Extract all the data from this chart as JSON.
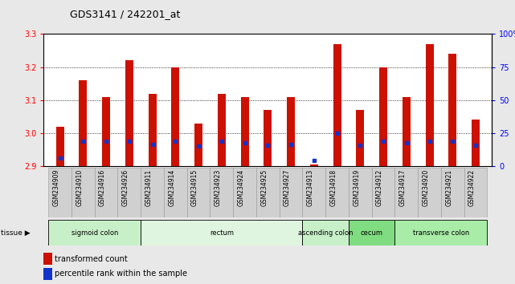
{
  "title": "GDS3141 / 242201_at",
  "samples": [
    "GSM234909",
    "GSM234910",
    "GSM234916",
    "GSM234926",
    "GSM234911",
    "GSM234914",
    "GSM234915",
    "GSM234923",
    "GSM234924",
    "GSM234925",
    "GSM234927",
    "GSM234913",
    "GSM234918",
    "GSM234919",
    "GSM234912",
    "GSM234917",
    "GSM234920",
    "GSM234921",
    "GSM234922"
  ],
  "red_values": [
    3.02,
    3.16,
    3.11,
    3.22,
    3.12,
    3.2,
    3.03,
    3.12,
    3.11,
    3.07,
    3.11,
    2.905,
    3.27,
    3.07,
    3.2,
    3.11,
    3.27,
    3.24,
    3.04
  ],
  "blue_values": [
    2.925,
    2.975,
    2.975,
    2.975,
    2.965,
    2.975,
    2.96,
    2.975,
    2.97,
    2.963,
    2.965,
    2.918,
    3.0,
    2.963,
    2.975,
    2.97,
    2.975,
    2.975,
    2.963
  ],
  "tissue_groups": [
    {
      "label": "sigmoid colon",
      "start": 0,
      "end": 4
    },
    {
      "label": "rectum",
      "start": 4,
      "end": 11
    },
    {
      "label": "ascending colon",
      "start": 11,
      "end": 13
    },
    {
      "label": "cecum",
      "start": 13,
      "end": 15
    },
    {
      "label": "transverse colon",
      "start": 15,
      "end": 19
    }
  ],
  "tissue_colors": {
    "sigmoid colon": "#c8f0c8",
    "rectum": "#dff5df",
    "ascending colon": "#c8f0c8",
    "cecum": "#80dc80",
    "transverse colon": "#a8eca8"
  },
  "ymin": 2.9,
  "ymax": 3.3,
  "yticks_left": [
    2.9,
    3.0,
    3.1,
    3.2,
    3.3
  ],
  "right_yticks_pct": [
    0,
    25,
    50,
    75,
    100
  ],
  "bar_color": "#cc1100",
  "blue_color": "#1133cc",
  "bg_color": "#e8e8e8",
  "plot_bg": "#ffffff",
  "title_fontsize": 9,
  "tick_fontsize": 7,
  "label_fontsize": 6.5
}
